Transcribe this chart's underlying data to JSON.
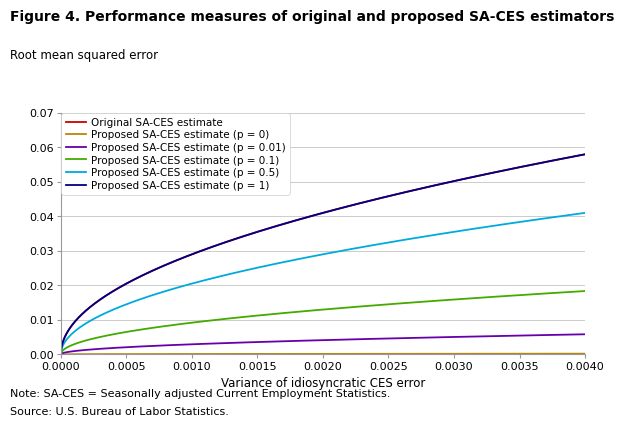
{
  "title": "Figure 4. Performance measures of original and proposed SA-CES estimators",
  "ylabel": "Root mean squared error",
  "xlabel": "Variance of idiosyncratic CES error",
  "xlim": [
    0,
    0.004
  ],
  "ylim": [
    0,
    0.07
  ],
  "xticks": [
    0.0,
    0.0005,
    0.001,
    0.0015,
    0.002,
    0.0025,
    0.003,
    0.0035,
    0.004
  ],
  "yticks": [
    0.0,
    0.01,
    0.02,
    0.03,
    0.04,
    0.05,
    0.06,
    0.07
  ],
  "note1": "Note: SA-CES = Seasonally adjusted Current Employment Statistics.",
  "note2": "Source: U.S. Bureau of Labor Statistics.",
  "series": [
    {
      "label": "Original SA-CES estimate",
      "color": "#cc0000",
      "p": 999,
      "type": "original"
    },
    {
      "label": "Proposed SA-CES estimate (p = 0)",
      "color": "#b8860b",
      "p": 0,
      "type": "proposed"
    },
    {
      "label": "Proposed SA-CES estimate (p = 0.01)",
      "color": "#6600aa",
      "p": 0.01,
      "type": "proposed"
    },
    {
      "label": "Proposed SA-CES estimate (p = 0.1)",
      "color": "#44aa00",
      "p": 0.1,
      "type": "proposed"
    },
    {
      "label": "Proposed SA-CES estimate (p = 0.5)",
      "color": "#00aadd",
      "p": 0.5,
      "type": "proposed"
    },
    {
      "label": "Proposed SA-CES estimate (p = 1)",
      "color": "#000088",
      "p": 1.0,
      "type": "proposed"
    }
  ],
  "scale": 0.841,
  "base_var_p0": 3e-08,
  "background_color": "#ffffff",
  "grid_color": "#cccccc"
}
